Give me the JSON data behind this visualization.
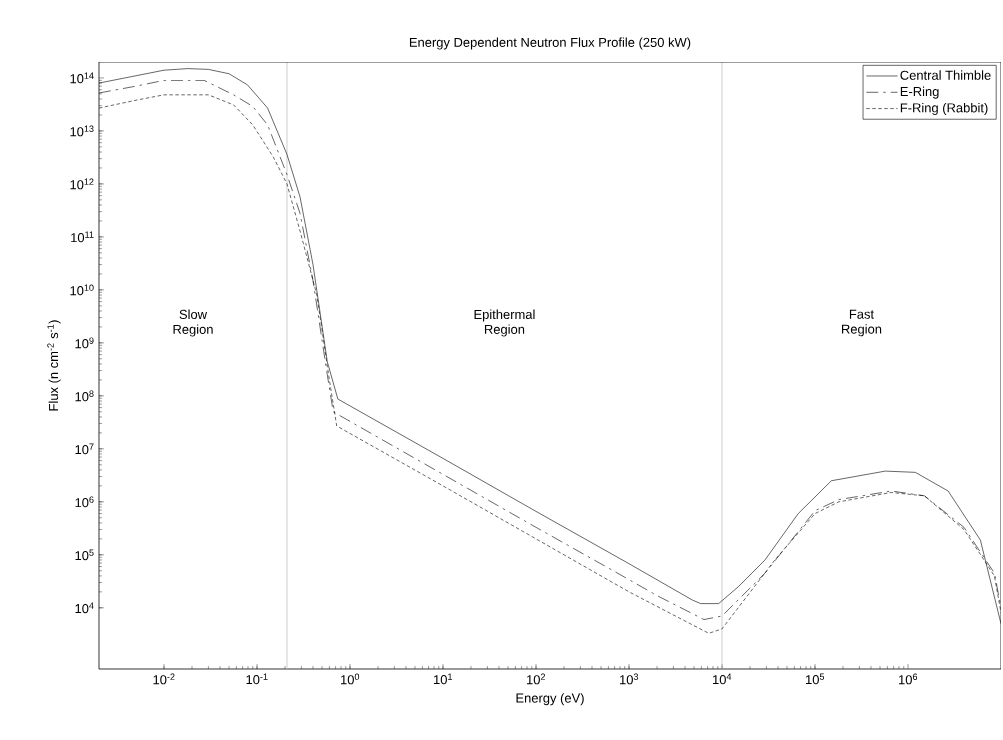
{
  "chart_data": {
    "type": "line",
    "title": "Energy Dependent Neutron Flux Profile (250 kW)",
    "xlabel": "Energy (eV)",
    "ylabel": "Flux (n cm$^{-2}$ s$^{-1}$)",
    "log": "xy",
    "xlim": [
      0.002,
      10000000
    ],
    "ylim": [
      700,
      200000000000000
    ],
    "xticks": [
      {
        "value": 0.01,
        "label": "10$^{-2}$"
      },
      {
        "value": 0.1,
        "label": "10$^{-1}$"
      },
      {
        "value": 1,
        "label": "10$^{0}$"
      },
      {
        "value": 10,
        "label": "10$^{1}$"
      },
      {
        "value": 100,
        "label": "10$^{2}$"
      },
      {
        "value": 1000,
        "label": "10$^{3}$"
      },
      {
        "value": 10000,
        "label": "10$^{4}$"
      },
      {
        "value": 100000,
        "label": "10$^{5}$"
      },
      {
        "value": 1000000,
        "label": "10$^{6}$"
      }
    ],
    "yticks": [
      {
        "value": 10000,
        "label": "10$^{4}$"
      },
      {
        "value": 100000,
        "label": "10$^{5}$"
      },
      {
        "value": 1000000,
        "label": "10$^{6}$"
      },
      {
        "value": 10000000,
        "label": "10$^{7}$"
      },
      {
        "value": 100000000,
        "label": "10$^{8}$"
      },
      {
        "value": 1000000000,
        "label": "10$^{9}$"
      },
      {
        "value": 10000000000,
        "label": "10$^{10}$"
      },
      {
        "value": 100000000000,
        "label": "10$^{11}$"
      },
      {
        "value": 1000000000000,
        "label": "10$^{12}$"
      },
      {
        "value": 10000000000000,
        "label": "10$^{13}$"
      },
      {
        "value": 100000000000000,
        "label": "10$^{14}$"
      }
    ],
    "grid": false,
    "legend": "top right",
    "series": [
      {
        "name": "Central Thimble",
        "color": "#000000",
        "line_style": "solid",
        "x": [
          0.002,
          0.005,
          0.01,
          0.018,
          0.03,
          0.05,
          0.079,
          0.13,
          0.21,
          0.29,
          0.4,
          0.57,
          0.74,
          10,
          100,
          1000,
          4800,
          5900,
          9200,
          15000,
          29000,
          66000,
          150000,
          570000,
          1200000,
          2700000,
          6000000,
          10000000
        ],
        "values": [
          80000000000000.0,
          110000000000000.0,
          140000000000000.0,
          150000000000000.0,
          145000000000000.0,
          120000000000000.0,
          74000000000000.0,
          27000000000000.0,
          3600000000000.0,
          570000000000.0,
          30000000000.0,
          440000000.0,
          87000000.0,
          6600000.0,
          660000.0,
          68000.0,
          14000.0,
          12000.0,
          12000.0,
          25000.0,
          80000.0,
          600000.0,
          2500000.0,
          3800000.0,
          3600000.0,
          1600000.0,
          190000.0,
          5000.0
        ]
      },
      {
        "name": "E-Ring",
        "color": "#000000",
        "line_style": "dashed",
        "x": [
          0.002,
          0.005,
          0.01,
          0.027,
          0.056,
          0.09,
          0.13,
          0.21,
          0.29,
          0.4,
          0.57,
          0.66,
          10,
          100,
          1000,
          2000,
          6400,
          10000,
          29000,
          100000,
          180000,
          660000,
          1500000,
          4000000,
          8500000,
          10000000
        ],
        "values": [
          52000000000000.0,
          70000000000000.0,
          90000000000000.0,
          90000000000000.0,
          48000000000000.0,
          29000000000000.0,
          13000000000000.0,
          1500000000000.0,
          280000000000.0,
          15000000000.0,
          250000000.0,
          50000000.0,
          3300000.0,
          330000.0,
          34000.0,
          17000.0,
          6000.0,
          7000.0,
          45000.0,
          680000.0,
          1100000.0,
          1600000.0,
          1300000.0,
          330000.0,
          45000.0,
          10000.0
        ]
      },
      {
        "name": "F-Ring (Rabbit)",
        "color": "#000000",
        "line_style": "dashed",
        "x": [
          0.002,
          0.005,
          0.01,
          0.03,
          0.056,
          0.09,
          0.15,
          0.21,
          0.29,
          0.44,
          0.6,
          0.72,
          10,
          100,
          1000,
          7200,
          10000,
          37000,
          100000,
          180000,
          660000,
          1500000,
          4000000,
          8500000,
          10000000
        ],
        "values": [
          27000000000000.0,
          38000000000000.0,
          48000000000000.0,
          48000000000000.0,
          31000000000000.0,
          13000000000000.0,
          3200000000000.0,
          1000000000000.0,
          130000000000.0,
          8000000000.0,
          200000000.0,
          27000000.0,
          2000000.0,
          200000.0,
          20000.0,
          3300.0,
          4000.0,
          80000.0,
          600000.0,
          1000000.0,
          1500000.0,
          1300000.0,
          300000.0,
          40000.0,
          8000.0
        ]
      }
    ],
    "ref_lines": [
      {
        "axis": "x",
        "value": 0.21,
        "color": "#bfbfbf"
      },
      {
        "axis": "x",
        "value": 10000,
        "color": "#bfbfbf"
      }
    ],
    "annotations": [
      "Slow Region",
      "Epithermal Region",
      "Fast Region"
    ]
  }
}
